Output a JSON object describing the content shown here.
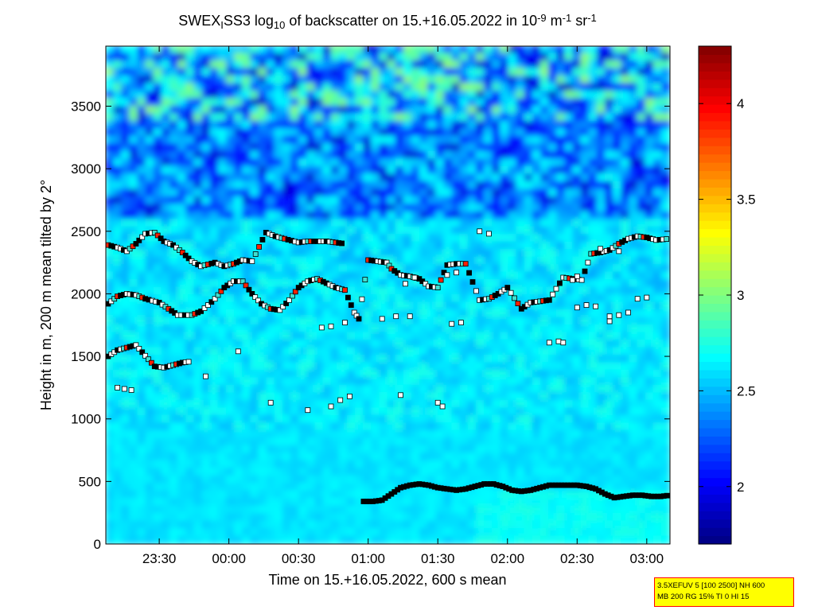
{
  "chart_data": {
    "type": "heatmap",
    "title": {
      "parts": [
        {
          "t": "SWEX",
          "s": "n"
        },
        {
          "t": "I",
          "s": "sub"
        },
        {
          "t": "SS3 log",
          "s": "n"
        },
        {
          "t": "10",
          "s": "sub"
        },
        {
          "t": " of backscatter on 15.+16.05.2022 in 10",
          "s": "n"
        },
        {
          "t": "-9",
          "s": "sup"
        },
        {
          "t": " m",
          "s": "n"
        },
        {
          "t": "-1",
          "s": "sup"
        },
        {
          "t": " sr",
          "s": "n"
        },
        {
          "t": "-1",
          "s": "sup"
        }
      ]
    },
    "xlabel": "Time on 15.+16.05.2022, 600 s mean",
    "ylabel": "Height in m, 200 m mean tilted by 2°",
    "x_start": "23:07",
    "x_end": "03:10",
    "xlim_min": [
      1387,
      1630
    ],
    "ylim": [
      0,
      3980
    ],
    "x_ticks": [
      {
        "label": "23:30",
        "min": 1410
      },
      {
        "label": "00:00",
        "min": 1440
      },
      {
        "label": "00:30",
        "min": 1470
      },
      {
        "label": "01:00",
        "min": 1500
      },
      {
        "label": "01:30",
        "min": 1530
      },
      {
        "label": "02:00",
        "min": 1560
      },
      {
        "label": "02:30",
        "min": 1590
      },
      {
        "label": "03:00",
        "min": 1620
      }
    ],
    "y_ticks": [
      {
        "label": "0",
        "v": 0
      },
      {
        "label": "500",
        "v": 500
      },
      {
        "label": "1000",
        "v": 1000
      },
      {
        "label": "1500",
        "v": 1500
      },
      {
        "label": "2000",
        "v": 2000
      },
      {
        "label": "2500",
        "v": 2500
      },
      {
        "label": "3000",
        "v": 3000
      },
      {
        "label": "3500",
        "v": 3500
      }
    ],
    "colorbar": {
      "range": [
        1.7,
        4.3
      ],
      "ticks": [
        {
          "label": "2",
          "v": 2
        },
        {
          "label": "2.5",
          "v": 2.5
        },
        {
          "label": "3",
          "v": 3
        },
        {
          "label": "3.5",
          "v": 3.5
        },
        {
          "label": "4",
          "v": 4
        }
      ]
    },
    "layers": [
      {
        "name": "mixing layer top",
        "points": [
          [
            1498,
            340
          ],
          [
            1502,
            340
          ],
          [
            1506,
            350
          ],
          [
            1510,
            400
          ],
          [
            1514,
            450
          ],
          [
            1518,
            470
          ],
          [
            1522,
            480
          ],
          [
            1526,
            470
          ],
          [
            1530,
            450
          ],
          [
            1534,
            440
          ],
          [
            1538,
            430
          ],
          [
            1542,
            440
          ],
          [
            1546,
            460
          ],
          [
            1550,
            480
          ],
          [
            1554,
            480
          ],
          [
            1558,
            460
          ],
          [
            1562,
            430
          ],
          [
            1566,
            420
          ],
          [
            1570,
            430
          ],
          [
            1574,
            450
          ],
          [
            1578,
            470
          ],
          [
            1582,
            470
          ],
          [
            1586,
            470
          ],
          [
            1590,
            470
          ],
          [
            1594,
            460
          ],
          [
            1598,
            440
          ],
          [
            1602,
            400
          ],
          [
            1606,
            370
          ],
          [
            1610,
            380
          ],
          [
            1614,
            390
          ],
          [
            1618,
            390
          ],
          [
            1622,
            380
          ],
          [
            1626,
            380
          ],
          [
            1630,
            390
          ]
        ]
      },
      {
        "name": "aerosol layer 1",
        "points": [
          [
            1388,
            1500
          ],
          [
            1392,
            1550
          ],
          [
            1396,
            1570
          ],
          [
            1400,
            1590
          ],
          [
            1408,
            1420
          ],
          [
            1412,
            1410
          ],
          [
            1416,
            1430
          ],
          [
            1420,
            1450
          ],
          [
            1424,
            1460
          ]
        ]
      },
      {
        "name": "aerosol layer 2",
        "points": [
          [
            1388,
            1920
          ],
          [
            1392,
            1980
          ],
          [
            1396,
            2000
          ],
          [
            1400,
            1990
          ],
          [
            1404,
            1960
          ],
          [
            1410,
            1930
          ],
          [
            1414,
            1880
          ],
          [
            1418,
            1830
          ],
          [
            1424,
            1830
          ],
          [
            1428,
            1860
          ],
          [
            1434,
            1960
          ],
          [
            1438,
            2050
          ],
          [
            1442,
            2100
          ],
          [
            1446,
            2100
          ],
          [
            1450,
            2000
          ],
          [
            1454,
            1920
          ],
          [
            1458,
            1880
          ],
          [
            1462,
            1870
          ],
          [
            1466,
            1950
          ],
          [
            1470,
            2050
          ],
          [
            1474,
            2100
          ],
          [
            1478,
            2120
          ],
          [
            1486,
            2050
          ],
          [
            1490,
            2030
          ],
          [
            1494,
            1850
          ],
          [
            1496,
            1800
          ],
          [
            1500,
            2270
          ],
          [
            1504,
            2260
          ],
          [
            1508,
            2250
          ],
          [
            1510,
            2200
          ],
          [
            1514,
            2150
          ],
          [
            1518,
            2140
          ],
          [
            1522,
            2120
          ],
          [
            1526,
            2060
          ],
          [
            1530,
            2050
          ],
          [
            1534,
            2230
          ],
          [
            1538,
            2240
          ],
          [
            1542,
            2240
          ],
          [
            1548,
            1950
          ],
          [
            1552,
            1960
          ],
          [
            1556,
            2000
          ],
          [
            1560,
            2050
          ],
          [
            1566,
            1880
          ],
          [
            1570,
            1930
          ],
          [
            1574,
            1940
          ],
          [
            1578,
            1950
          ],
          [
            1584,
            2130
          ],
          [
            1588,
            2120
          ],
          [
            1592,
            2110
          ],
          [
            1596,
            2320
          ],
          [
            1600,
            2330
          ],
          [
            1604,
            2350
          ],
          [
            1608,
            2400
          ],
          [
            1612,
            2440
          ],
          [
            1616,
            2460
          ],
          [
            1620,
            2450
          ],
          [
            1624,
            2430
          ],
          [
            1630,
            2440
          ]
        ]
      },
      {
        "name": "aerosol layer 3",
        "points": [
          [
            1388,
            2390
          ],
          [
            1392,
            2370
          ],
          [
            1396,
            2340
          ],
          [
            1400,
            2400
          ],
          [
            1404,
            2480
          ],
          [
            1408,
            2490
          ],
          [
            1412,
            2420
          ],
          [
            1416,
            2390
          ],
          [
            1420,
            2330
          ],
          [
            1424,
            2260
          ],
          [
            1428,
            2220
          ],
          [
            1434,
            2250
          ],
          [
            1438,
            2220
          ],
          [
            1442,
            2240
          ],
          [
            1446,
            2270
          ],
          [
            1450,
            2260
          ],
          [
            1456,
            2490
          ],
          [
            1460,
            2460
          ],
          [
            1464,
            2440
          ],
          [
            1470,
            2410
          ],
          [
            1474,
            2420
          ],
          [
            1478,
            2420
          ],
          [
            1482,
            2420
          ],
          [
            1486,
            2410
          ],
          [
            1490,
            2400
          ]
        ]
      }
    ],
    "scattered_points": [
      [
        1392,
        1250
      ],
      [
        1395,
        1240
      ],
      [
        1398,
        1230
      ],
      [
        1430,
        1340
      ],
      [
        1444,
        1540
      ],
      [
        1458,
        1130
      ],
      [
        1474,
        1070
      ],
      [
        1484,
        1100
      ],
      [
        1488,
        1150
      ],
      [
        1492,
        1180
      ],
      [
        1514,
        1190
      ],
      [
        1530,
        1130
      ],
      [
        1532,
        1100
      ],
      [
        1480,
        1730
      ],
      [
        1484,
        1740
      ],
      [
        1490,
        1770
      ],
      [
        1506,
        1800
      ],
      [
        1512,
        1820
      ],
      [
        1518,
        1820
      ],
      [
        1536,
        1760
      ],
      [
        1540,
        1770
      ],
      [
        1578,
        1610
      ],
      [
        1582,
        1620
      ],
      [
        1584,
        1610
      ],
      [
        1590,
        1890
      ],
      [
        1594,
        1910
      ],
      [
        1598,
        1900
      ],
      [
        1604,
        1820
      ],
      [
        1608,
        1830
      ],
      [
        1612,
        1850
      ],
      [
        1616,
        1960
      ],
      [
        1620,
        1970
      ],
      [
        1548,
        2500
      ],
      [
        1552,
        2480
      ],
      [
        1534,
        2150
      ],
      [
        1538,
        2170
      ],
      [
        1520,
        2130
      ],
      [
        1516,
        2080
      ],
      [
        1604,
        1780
      ],
      [
        1590,
        2140
      ],
      [
        1588,
        2110
      ],
      [
        1600,
        2360
      ],
      [
        1608,
        2340
      ]
    ]
  },
  "params_box": {
    "line1": "3.5XEFUV 5 [100 2500] NH 600",
    "line2": "MB 200 RG 15% TI 0 HI 15"
  }
}
